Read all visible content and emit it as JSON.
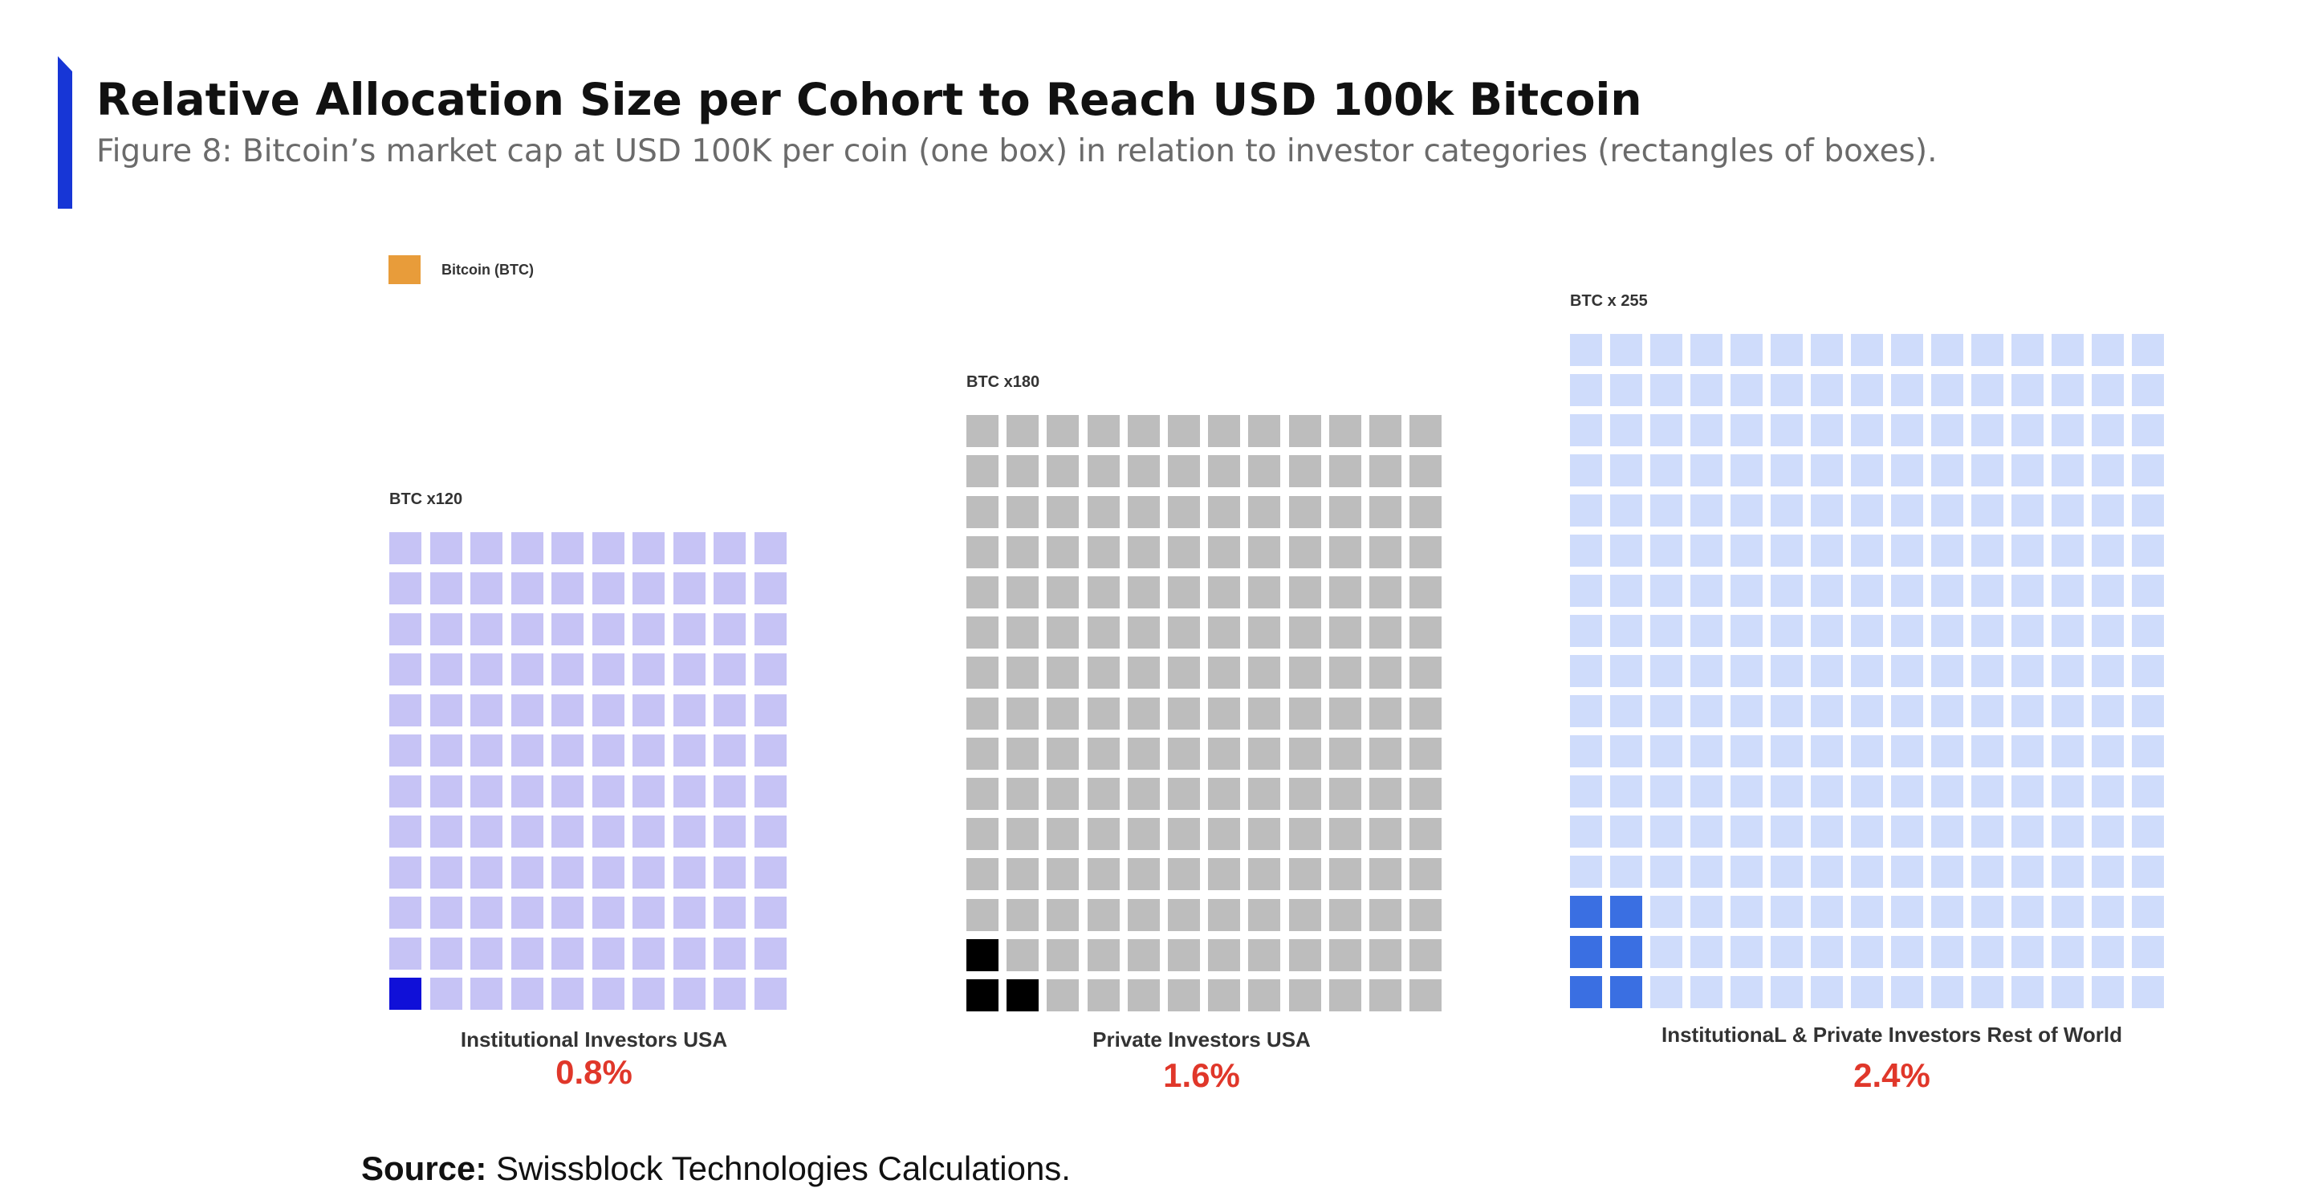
{
  "header": {
    "title": "Relative Allocation Size per Cohort to Reach USD 100k Bitcoin",
    "subtitle": "Figure 8:  Bitcoin’s market cap at USD 100K per coin (one box) in relation to investor categories (rectangles of boxes)."
  },
  "legend": {
    "label": "Bitcoin (BTC)",
    "color": "#e89c3a"
  },
  "chart_data": {
    "type": "waffle",
    "unit": "one box = Bitcoin's market cap at USD 100K per coin",
    "cohorts": [
      {
        "panel_label": "BTC x120",
        "name": "Institutional Investors USA",
        "percent_label": "0.8%",
        "multiple": 120,
        "columns": 10,
        "rows": 12,
        "btc_boxes": 1,
        "fill_color": "#c6c3f5",
        "btc_color": "#1010d8"
      },
      {
        "panel_label": "BTC x180",
        "name": "Private Investors USA",
        "percent_label": "1.6%",
        "multiple": 180,
        "columns": 12,
        "rows": 15,
        "btc_boxes": 3,
        "fill_color": "#bdbdbd",
        "btc_color": "#000000"
      },
      {
        "panel_label": "BTC x 255",
        "name": "InstitutionaL & Private Investors Rest of World",
        "percent_label": "2.4%",
        "multiple": 255,
        "columns": 15,
        "rows": 17,
        "btc_boxes": 6,
        "fill_color": "#cfdcfb",
        "btc_color": "#3a6fe2"
      }
    ]
  },
  "source": {
    "label": "Source:",
    "text": "Swissblock Technologies Calculations."
  }
}
